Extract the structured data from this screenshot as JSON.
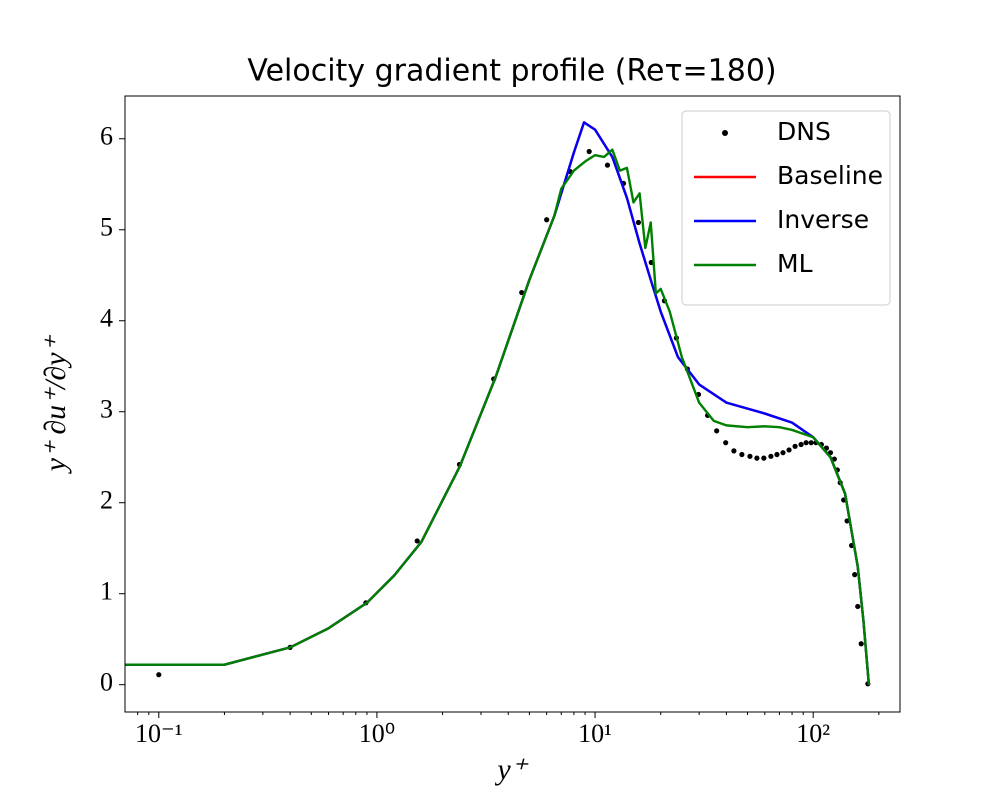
{
  "chart_data": {
    "type": "line",
    "title": "Velocity gradient profile (Reτ=180)",
    "xlabel": "y⁺",
    "ylabel": "y⁺ ∂u⁺/∂y⁺",
    "xscale": "log",
    "xlim": [
      0.07,
      250
    ],
    "ylim": [
      -0.3,
      6.47
    ],
    "xticks": [
      {
        "value": 0.1,
        "label": "10⁻¹"
      },
      {
        "value": 1,
        "label": "10⁰"
      },
      {
        "value": 10,
        "label": "10¹"
      },
      {
        "value": 100,
        "label": "10²"
      }
    ],
    "yticks": [
      0,
      1,
      2,
      3,
      4,
      5,
      6
    ],
    "grid": false,
    "legend": "upper right",
    "series": [
      {
        "name": "DNS",
        "color": "#000000",
        "marker": "dot",
        "x": [
          0.1,
          0.4,
          0.89,
          1.53,
          2.39,
          3.43,
          4.61,
          6.0,
          7.67,
          9.4,
          11.4,
          13.5,
          15.8,
          18.1,
          20.8,
          23.6,
          26.5,
          29.8,
          32.8,
          36.1,
          39.7,
          43.3,
          47.1,
          51.3,
          55.2,
          59.4,
          64.0,
          68.2,
          72.7,
          77.5,
          82.6,
          88.0,
          92.8,
          97.9,
          103,
          109,
          115,
          120,
          125,
          129,
          133,
          138,
          143,
          150,
          155,
          160,
          166,
          178
        ],
        "values": [
          0.11,
          0.41,
          0.9,
          1.58,
          2.42,
          3.36,
          4.31,
          5.11,
          5.64,
          5.86,
          5.71,
          5.51,
          5.08,
          4.64,
          4.22,
          3.81,
          3.47,
          3.19,
          2.96,
          2.79,
          2.66,
          2.57,
          2.53,
          2.51,
          2.49,
          2.49,
          2.51,
          2.53,
          2.55,
          2.58,
          2.62,
          2.64,
          2.66,
          2.66,
          2.66,
          2.64,
          2.6,
          2.55,
          2.48,
          2.36,
          2.22,
          2.03,
          1.8,
          1.53,
          1.21,
          0.86,
          0.45,
          0.01
        ]
      },
      {
        "name": "Baseline",
        "color": "#ff0000",
        "marker": "line",
        "x": [
          0.07,
          0.2,
          0.4,
          0.6,
          0.9,
          1.2,
          1.6,
          2.4,
          3.5,
          5,
          6.5,
          8,
          8.9,
          10,
          12,
          14,
          16,
          18,
          20,
          24,
          30,
          40,
          60,
          80,
          100,
          120,
          140,
          160,
          170,
          180
        ],
        "values": [
          0.22,
          0.22,
          0.41,
          0.62,
          0.9,
          1.2,
          1.57,
          2.4,
          3.38,
          4.45,
          5.15,
          5.85,
          6.18,
          6.1,
          5.8,
          5.35,
          4.85,
          4.45,
          4.1,
          3.6,
          3.3,
          3.1,
          2.98,
          2.88,
          2.72,
          2.5,
          2.1,
          1.3,
          0.7,
          0
        ]
      },
      {
        "name": "Inverse",
        "color": "#0000ff",
        "marker": "line",
        "x": [
          0.07,
          0.2,
          0.4,
          0.6,
          0.9,
          1.2,
          1.6,
          2.4,
          3.5,
          5,
          6.5,
          8,
          8.9,
          10,
          12,
          14,
          16,
          18,
          20,
          24,
          30,
          40,
          60,
          80,
          100,
          120,
          140,
          160,
          170,
          180
        ],
        "values": [
          0.22,
          0.22,
          0.41,
          0.62,
          0.9,
          1.2,
          1.57,
          2.4,
          3.38,
          4.45,
          5.15,
          5.85,
          6.18,
          6.1,
          5.8,
          5.35,
          4.85,
          4.45,
          4.1,
          3.6,
          3.3,
          3.1,
          2.98,
          2.88,
          2.72,
          2.5,
          2.1,
          1.3,
          0.7,
          0
        ]
      },
      {
        "name": "ML",
        "color": "#008000",
        "marker": "line",
        "x": [
          0.07,
          0.2,
          0.4,
          0.6,
          0.9,
          1.2,
          1.6,
          2.4,
          3.5,
          5,
          6.5,
          7,
          8,
          9,
          10,
          11,
          12,
          13,
          14,
          15,
          16,
          17,
          18,
          19,
          20,
          22,
          25,
          30,
          35,
          40,
          50,
          60,
          70,
          80,
          100,
          120,
          140,
          160,
          170,
          180
        ],
        "values": [
          0.22,
          0.22,
          0.41,
          0.62,
          0.9,
          1.2,
          1.57,
          2.4,
          3.38,
          4.45,
          5.15,
          5.45,
          5.65,
          5.75,
          5.82,
          5.8,
          5.88,
          5.65,
          5.68,
          5.3,
          5.4,
          4.8,
          5.08,
          4.3,
          4.35,
          4.1,
          3.6,
          3.1,
          2.9,
          2.85,
          2.83,
          2.84,
          2.83,
          2.8,
          2.72,
          2.5,
          2.1,
          1.3,
          0.7,
          0
        ]
      }
    ]
  }
}
